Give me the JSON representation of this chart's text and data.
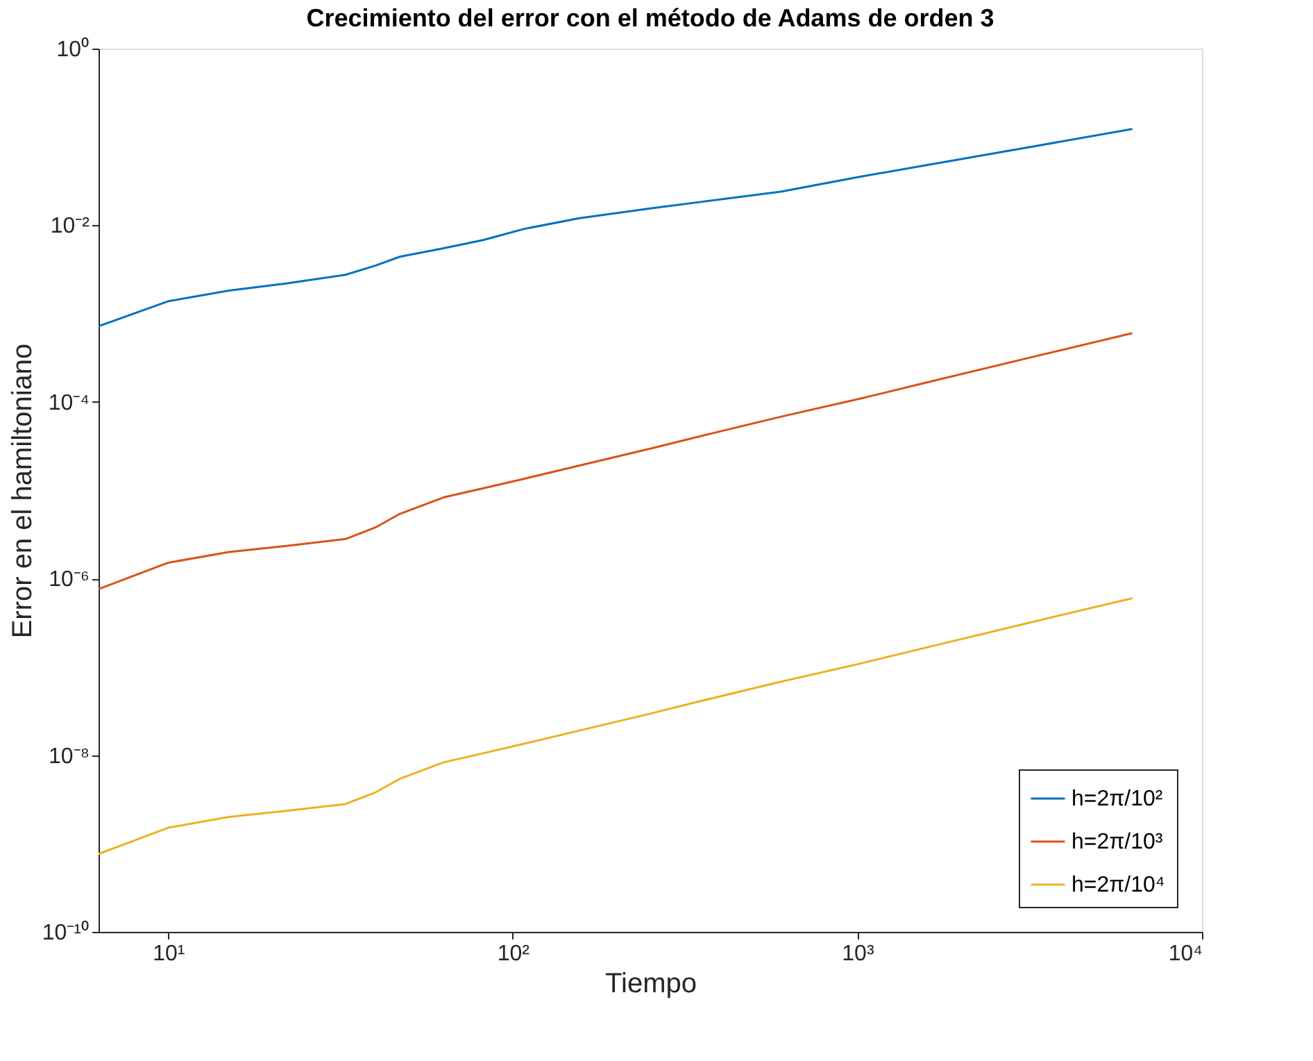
{
  "chart_data": {
    "type": "line",
    "title": "Crecimiento del error con el método de Adams de orden 3",
    "xlabel": "Tiempo",
    "ylabel": "Error en el hamiltoniano",
    "x": [
      6.28,
      10,
      15,
      22,
      32.7,
      40,
      47,
      63,
      82,
      108,
      156,
      250,
      360,
      600,
      1000,
      1590,
      3300,
      6280
    ],
    "series": [
      {
        "name": "h=2π/10²",
        "color": "#0072bd",
        "values": [
          0.00072,
          0.00138,
          0.00182,
          0.00219,
          0.00275,
          0.0035,
          0.0044,
          0.0055,
          0.0068,
          0.0091,
          0.012,
          0.0155,
          0.0186,
          0.024,
          0.035,
          0.048,
          0.079,
          0.123
        ]
      },
      {
        "name": "h=2π/10³",
        "color": "#d95319",
        "values": [
          7.6e-07,
          1.51e-06,
          2e-06,
          2.34e-06,
          2.8e-06,
          3.8e-06,
          5.4e-06,
          8.3e-06,
          1.05e-05,
          1.35e-05,
          1.9e-05,
          2.95e-05,
          4.2e-05,
          6.8e-05,
          0.000107,
          0.000166,
          0.00033,
          0.0006
        ]
      },
      {
        "name": "h=2π/10⁴",
        "color": "#edb120",
        "values": [
          7.6e-10,
          1.51e-09,
          2e-09,
          2.34e-09,
          2.8e-09,
          3.8e-09,
          5.4e-09,
          8.3e-09,
          1.05e-08,
          1.35e-08,
          1.9e-08,
          2.95e-08,
          4.2e-08,
          6.8e-08,
          1.07e-07,
          1.66e-07,
          3.3e-07,
          6e-07
        ]
      }
    ],
    "log": "xy",
    "xlim": [
      6.28,
      10000
    ],
    "ylim": [
      1e-10,
      1
    ],
    "xticks": [
      {
        "value": 10,
        "label": "10¹"
      },
      {
        "value": 100,
        "label": "10²"
      },
      {
        "value": 1000,
        "label": "10³"
      },
      {
        "value": 10000,
        "label": "10⁴"
      }
    ],
    "yticks": [
      {
        "value": 1e-10,
        "label": "10⁻¹⁰"
      },
      {
        "value": 1e-08,
        "label": "10⁻⁸"
      },
      {
        "value": 1e-06,
        "label": "10⁻⁶"
      },
      {
        "value": 0.0001,
        "label": "10⁻⁴"
      },
      {
        "value": 0.01,
        "label": "10⁻²"
      },
      {
        "value": 1,
        "label": "10⁰"
      }
    ],
    "grid": false,
    "legend": "bottom right",
    "line_style": "solid",
    "marker": "none"
  }
}
